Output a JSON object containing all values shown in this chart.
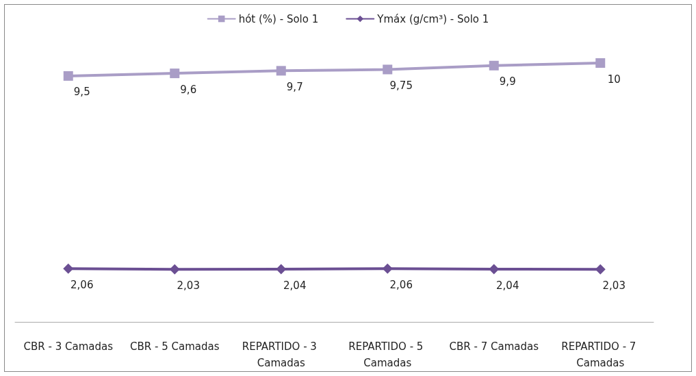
{
  "chart_data": {
    "type": "line",
    "categories": [
      "CBR - 3 Camadas",
      "CBR - 5 Camadas",
      "REPARTIDO - 3 Camadas",
      "REPARTIDO - 5 Camadas",
      "CBR - 7 Camadas",
      "REPARTIDO - 7 Camadas"
    ],
    "series": [
      {
        "name": "hót (%) - Solo 1",
        "color": "#a99dc6",
        "marker": "square",
        "values": [
          9.5,
          9.6,
          9.7,
          9.75,
          9.9,
          10
        ],
        "value_labels": [
          "9,5",
          "9,6",
          "9,7",
          "9,75",
          "9,9",
          "10"
        ]
      },
      {
        "name": "Ymáx (g/cm³) - Solo 1",
        "color": "#6b4f93",
        "marker": "diamond",
        "values": [
          2.06,
          2.03,
          2.04,
          2.06,
          2.04,
          2.03
        ],
        "value_labels": [
          "2,06",
          "2,03",
          "2,04",
          "2,06",
          "2,04",
          "2,03"
        ]
      }
    ],
    "legend": "top",
    "grid": false,
    "tick_labels": "x",
    "line_style": "solid"
  }
}
